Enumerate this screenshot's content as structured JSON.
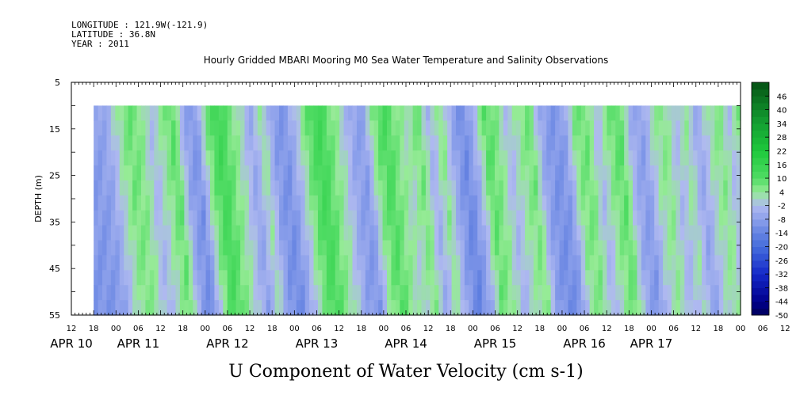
{
  "header": {
    "longitude": "LONGITUDE : 121.9W(-121.9)",
    "latitude": "LATITUDE : 36.8N",
    "year": "YEAR : 2011",
    "title": "Hourly Gridded MBARI Mooring M0 Sea Water Temperature and Salinity Observations"
  },
  "chart_data": {
    "type": "heatmap",
    "title": "U Component of Water Velocity (cm s-1)",
    "ylabel": "DEPTH (m)",
    "y_reversed": true,
    "ylim": [
      5,
      55
    ],
    "yticks": [
      5,
      15,
      25,
      35,
      45,
      55
    ],
    "data_depth_range": [
      10,
      55
    ],
    "time_range_hours": [
      -12,
      168
    ],
    "data_time_range_hours": [
      -6,
      168
    ],
    "hour_ticks": [
      "12",
      "18",
      "00",
      "06",
      "12",
      "18",
      "00",
      "06",
      "12",
      "18",
      "00",
      "06",
      "12",
      "18",
      "00",
      "06",
      "12",
      "18",
      "00",
      "06",
      "12",
      "18",
      "00",
      "06",
      "12",
      "18",
      "00",
      "06",
      "12",
      "18",
      "00",
      "06",
      "12"
    ],
    "date_labels": [
      {
        "label": "APR 10",
        "hour": -12
      },
      {
        "label": "APR 11",
        "hour": 6
      },
      {
        "label": "APR 12",
        "hour": 30
      },
      {
        "label": "APR 13",
        "hour": 54
      },
      {
        "label": "APR 14",
        "hour": 78
      },
      {
        "label": "APR 15",
        "hour": 102
      },
      {
        "label": "APR 16",
        "hour": 126
      },
      {
        "label": "APR 17",
        "hour": 144
      }
    ],
    "colorbar": {
      "labels": [
        "46",
        "40",
        "34",
        "28",
        "22",
        "16",
        "10",
        "4",
        "-2",
        "-8",
        "-14",
        "-20",
        "-26",
        "-32",
        "-38",
        "-44",
        "-50"
      ],
      "range": [
        -50,
        52
      ]
    },
    "depth_mean_u_by_time": [
      {
        "hour": -6,
        "value": -8
      },
      {
        "hour": -3,
        "value": -6
      },
      {
        "hour": 0,
        "value": 2
      },
      {
        "hour": 3,
        "value": 8
      },
      {
        "hour": 6,
        "value": 6
      },
      {
        "hour": 9,
        "value": -2
      },
      {
        "hour": 12,
        "value": 4
      },
      {
        "hour": 15,
        "value": 10
      },
      {
        "hour": 18,
        "value": -6
      },
      {
        "hour": 21,
        "value": -10
      },
      {
        "hour": 24,
        "value": 6
      },
      {
        "hour": 27,
        "value": 14
      },
      {
        "hour": 30,
        "value": 8
      },
      {
        "hour": 33,
        "value": 2
      },
      {
        "hour": 36,
        "value": -6
      },
      {
        "hour": 39,
        "value": 4
      },
      {
        "hour": 42,
        "value": -8
      },
      {
        "hour": 45,
        "value": -10
      },
      {
        "hour": 48,
        "value": -2
      },
      {
        "hour": 51,
        "value": 8
      },
      {
        "hour": 54,
        "value": 14
      },
      {
        "hour": 57,
        "value": 8
      },
      {
        "hour": 60,
        "value": 2
      },
      {
        "hour": 63,
        "value": -6
      },
      {
        "hour": 66,
        "value": -8
      },
      {
        "hour": 69,
        "value": 6
      },
      {
        "hour": 72,
        "value": 12
      },
      {
        "hour": 75,
        "value": 6
      },
      {
        "hour": 78,
        "value": 2
      },
      {
        "hour": 81,
        "value": 8
      },
      {
        "hour": 84,
        "value": -4
      },
      {
        "hour": 87,
        "value": 6
      },
      {
        "hour": 90,
        "value": -6
      },
      {
        "hour": 93,
        "value": -12
      },
      {
        "hour": 96,
        "value": -4
      },
      {
        "hour": 99,
        "value": 10
      },
      {
        "hour": 102,
        "value": 6
      },
      {
        "hour": 105,
        "value": -2
      },
      {
        "hour": 108,
        "value": 4
      },
      {
        "hour": 111,
        "value": 8
      },
      {
        "hour": 114,
        "value": -6
      },
      {
        "hour": 117,
        "value": -10
      },
      {
        "hour": 120,
        "value": -8
      },
      {
        "hour": 123,
        "value": 6
      },
      {
        "hour": 126,
        "value": 8
      },
      {
        "hour": 129,
        "value": -2
      },
      {
        "hour": 132,
        "value": 6
      },
      {
        "hour": 135,
        "value": 10
      },
      {
        "hour": 138,
        "value": -4
      },
      {
        "hour": 141,
        "value": -8
      },
      {
        "hour": 144,
        "value": 2
      },
      {
        "hour": 147,
        "value": 6
      },
      {
        "hour": 150,
        "value": -2
      },
      {
        "hour": 153,
        "value": 4
      },
      {
        "hour": 156,
        "value": -6
      },
      {
        "hour": 159,
        "value": 2
      },
      {
        "hour": 162,
        "value": 6
      },
      {
        "hour": 165,
        "value": -2
      },
      {
        "hour": 168,
        "value": 8
      }
    ]
  }
}
